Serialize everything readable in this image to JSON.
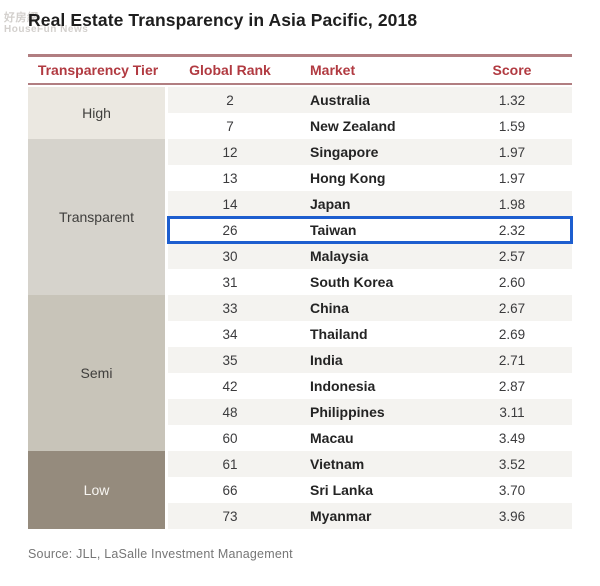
{
  "page": {
    "title": "Real Estate Transparency in Asia Pacific, 2018",
    "source": "Source: JLL, LaSalle Investment Management",
    "watermark": {
      "line1": "好房網",
      "line2": "HouseFun News"
    }
  },
  "colors": {
    "header_text": "#b13a41",
    "rule": "#b17e81",
    "tier_high": "#ebe8e1",
    "tier_transparent": "#d6d3cc",
    "tier_semi": "#c8c4b9",
    "tier_low": "#958b7d",
    "row_shaded": "#f4f3f0",
    "highlight_border": "#1d5ecf"
  },
  "table": {
    "headers": [
      "Transparency Tier",
      "Global Rank",
      "Market",
      "Score"
    ],
    "tiers": [
      {
        "label": "High",
        "key": "high",
        "rows": [
          {
            "rank": "2",
            "market": "Australia",
            "score": "1.32"
          },
          {
            "rank": "7",
            "market": "New Zealand",
            "score": "1.59"
          }
        ]
      },
      {
        "label": "Transparent",
        "key": "transparent",
        "rows": [
          {
            "rank": "12",
            "market": "Singapore",
            "score": "1.97"
          },
          {
            "rank": "13",
            "market": "Hong Kong",
            "score": "1.97"
          },
          {
            "rank": "14",
            "market": "Japan",
            "score": "1.98"
          },
          {
            "rank": "26",
            "market": "Taiwan",
            "score": "2.32",
            "highlighted": true
          },
          {
            "rank": "30",
            "market": "Malaysia",
            "score": "2.57"
          },
          {
            "rank": "31",
            "market": "South Korea",
            "score": "2.60"
          }
        ]
      },
      {
        "label": "Semi",
        "key": "semi",
        "rows": [
          {
            "rank": "33",
            "market": "China",
            "score": "2.67"
          },
          {
            "rank": "34",
            "market": "Thailand",
            "score": "2.69"
          },
          {
            "rank": "35",
            "market": "India",
            "score": "2.71"
          },
          {
            "rank": "42",
            "market": "Indonesia",
            "score": "2.87"
          },
          {
            "rank": "48",
            "market": "Philippines",
            "score": "3.11"
          },
          {
            "rank": "60",
            "market": "Macau",
            "score": "3.49"
          }
        ]
      },
      {
        "label": "Low",
        "key": "low",
        "rows": [
          {
            "rank": "61",
            "market": "Vietnam",
            "score": "3.52"
          },
          {
            "rank": "66",
            "market": "Sri Lanka",
            "score": "3.70"
          },
          {
            "rank": "73",
            "market": "Myanmar",
            "score": "3.96"
          }
        ]
      }
    ]
  },
  "chart_data": {
    "type": "table",
    "title": "Real Estate Transparency in Asia Pacific, 2018",
    "columns": [
      "Transparency Tier",
      "Global Rank",
      "Market",
      "Score"
    ],
    "rows": [
      [
        "High",
        2,
        "Australia",
        1.32
      ],
      [
        "High",
        7,
        "New Zealand",
        1.59
      ],
      [
        "Transparent",
        12,
        "Singapore",
        1.97
      ],
      [
        "Transparent",
        13,
        "Hong Kong",
        1.97
      ],
      [
        "Transparent",
        14,
        "Japan",
        1.98
      ],
      [
        "Transparent",
        26,
        "Taiwan",
        2.32
      ],
      [
        "Transparent",
        30,
        "Malaysia",
        2.57
      ],
      [
        "Transparent",
        31,
        "South Korea",
        2.6
      ],
      [
        "Semi",
        33,
        "China",
        2.67
      ],
      [
        "Semi",
        34,
        "Thailand",
        2.69
      ],
      [
        "Semi",
        35,
        "India",
        2.71
      ],
      [
        "Semi",
        42,
        "Indonesia",
        2.87
      ],
      [
        "Semi",
        48,
        "Philippines",
        3.11
      ],
      [
        "Semi",
        60,
        "Macau",
        3.49
      ],
      [
        "Low",
        61,
        "Vietnam",
        3.52
      ],
      [
        "Low",
        66,
        "Sri Lanka",
        3.7
      ],
      [
        "Low",
        73,
        "Myanmar",
        3.96
      ]
    ],
    "highlighted_row": {
      "transparency_tier": "Transparent",
      "global_rank": 26,
      "market": "Taiwan",
      "score": 2.32
    },
    "source": "Source: JLL, LaSalle Investment Management"
  }
}
